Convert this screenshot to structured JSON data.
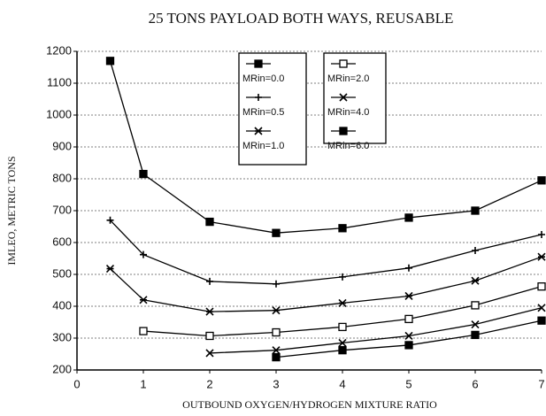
{
  "chart_data": {
    "type": "line",
    "title": "25 TONS PAYLOAD BOTH WAYS, REUSABLE",
    "xlabel": "OUTBOUND OXYGEN/HYDROGEN MIXTURE RATIO",
    "ylabel": "IMLEO, METRIC TONS",
    "x": [
      0.5,
      1,
      2,
      3,
      4,
      5,
      6,
      7
    ],
    "series": [
      {
        "name": "MRin=0.0",
        "color": "#000000",
        "marker": "filled-square",
        "values": [
          1170,
          815,
          665,
          630,
          645,
          678,
          700,
          795
        ]
      },
      {
        "name": "MRin=0.5",
        "color": "#000000",
        "marker": "plus",
        "values": [
          670,
          562,
          478,
          470,
          492,
          520,
          575,
          625
        ]
      },
      {
        "name": "MRin=1.0",
        "color": "#000000",
        "marker": "asterisk",
        "values": [
          518,
          420,
          383,
          387,
          410,
          432,
          480,
          555
        ]
      },
      {
        "name": "MRin=2.0",
        "color": "#000000",
        "marker": "open-square",
        "values": [
          null,
          322,
          307,
          318,
          335,
          360,
          403,
          462
        ]
      },
      {
        "name": "MRin=4.0",
        "color": "#000000",
        "marker": "x",
        "values": [
          null,
          null,
          253,
          262,
          285,
          307,
          343,
          395
        ]
      },
      {
        "name": "MRin=6.0",
        "color": "#000000",
        "marker": "filled-square",
        "values": [
          null,
          null,
          null,
          240,
          262,
          278,
          310,
          355
        ]
      }
    ],
    "xlim": [
      0,
      7
    ],
    "xticks": [
      0,
      1,
      2,
      3,
      4,
      5,
      6,
      7
    ],
    "ylim": [
      200,
      1200
    ],
    "yticks": [
      200,
      300,
      400,
      500,
      600,
      700,
      800,
      900,
      1000,
      1100,
      1200
    ],
    "grid": true
  }
}
